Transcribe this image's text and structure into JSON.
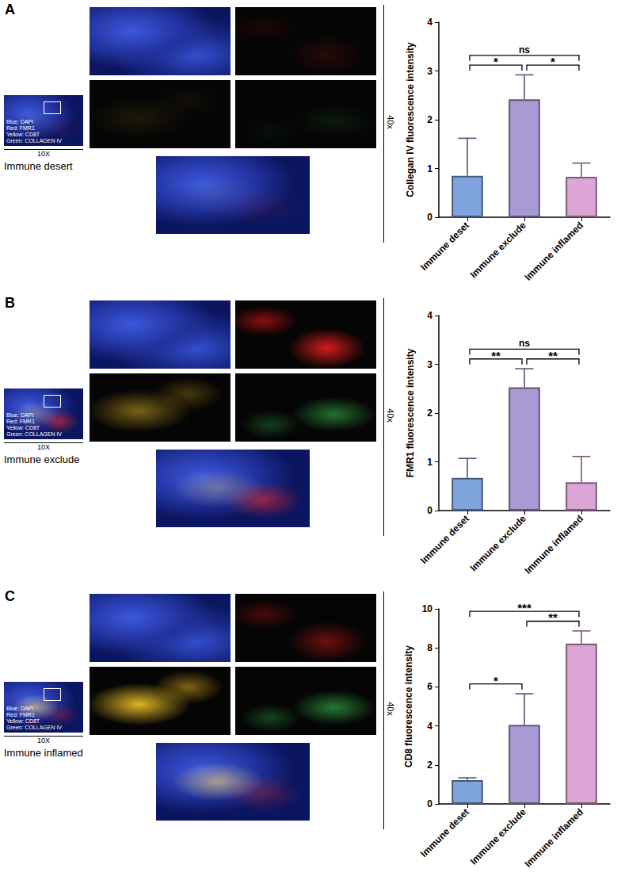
{
  "figure": {
    "stain_legend": [
      "Blue: DAPI",
      "Red: FMR1",
      "Yellow: CD8T",
      "Green: COLLAGEN IV"
    ],
    "low_mag": "10X",
    "high_mag": "40x",
    "panels": [
      {
        "letter": "A",
        "sample": "Immune desert"
      },
      {
        "letter": "B",
        "sample": "Immune exclude"
      },
      {
        "letter": "C",
        "sample": "Immune inflamed"
      }
    ]
  },
  "chart_data": [
    {
      "type": "bar",
      "y_label": "Collegan IV fluorescence intensity",
      "categories": [
        "Immune deset",
        "Immune exclude",
        "Immune inflamed"
      ],
      "values": [
        0.85,
        2.42,
        0.83
      ],
      "errors": [
        0.77,
        0.5,
        0.28
      ],
      "colors": [
        "#7fa3dc",
        "#a99ad6",
        "#dba5d5"
      ],
      "ylim": [
        0,
        4
      ],
      "yticks": [
        0,
        1,
        2,
        3,
        4
      ],
      "grid": false,
      "significance": [
        {
          "from": 0,
          "to": 1,
          "label": "*"
        },
        {
          "from": 1,
          "to": 2,
          "label": "*"
        },
        {
          "from": 0,
          "to": 2,
          "label": "ns"
        }
      ]
    },
    {
      "type": "bar",
      "y_label": "FMR1 fluorescence intensity",
      "categories": [
        "Immune deset",
        "Immune exclude",
        "Immune inflamed"
      ],
      "values": [
        0.67,
        2.53,
        0.58
      ],
      "errors": [
        0.4,
        0.38,
        0.53
      ],
      "colors": [
        "#7fa3dc",
        "#a99ad6",
        "#dba5d5"
      ],
      "ylim": [
        0,
        4
      ],
      "yticks": [
        0,
        1,
        2,
        3,
        4
      ],
      "grid": false,
      "significance": [
        {
          "from": 0,
          "to": 1,
          "label": "**"
        },
        {
          "from": 1,
          "to": 2,
          "label": "**"
        },
        {
          "from": 0,
          "to": 2,
          "label": "ns"
        }
      ]
    },
    {
      "type": "bar",
      "y_label": "CD8 fluorescence intensity",
      "categories": [
        "Immune deset",
        "Immune exclude",
        "Immune inflamed"
      ],
      "values": [
        1.22,
        4.05,
        8.22
      ],
      "errors": [
        0.12,
        1.6,
        0.65
      ],
      "colors": [
        "#7fa3dc",
        "#a99ad6",
        "#dba5d5"
      ],
      "ylim": [
        0,
        10
      ],
      "yticks": [
        0,
        2,
        4,
        6,
        8,
        10
      ],
      "grid": false,
      "significance": [
        {
          "from": 0,
          "to": 1,
          "label": "*"
        },
        {
          "from": 1,
          "to": 2,
          "label": "**"
        },
        {
          "from": 0,
          "to": 2,
          "label": "***"
        }
      ]
    }
  ]
}
